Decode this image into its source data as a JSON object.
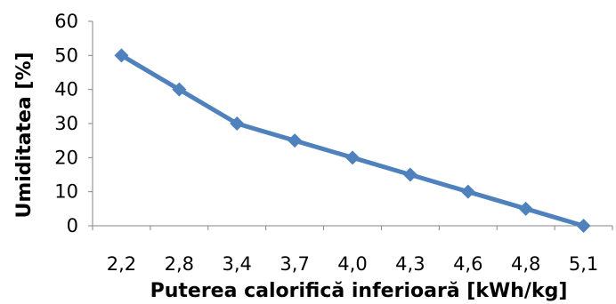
{
  "chart_data": {
    "type": "line",
    "title": "",
    "xlabel": "Puterea calorifică inferioară [kWh/kg]",
    "ylabel": "Umiditatea [%]",
    "categories": [
      "2,2",
      "2,8",
      "3,4",
      "3,7",
      "4,0",
      "4,3",
      "4,6",
      "4,8",
      "5,1"
    ],
    "yticks": [
      "0",
      "10",
      "20",
      "30",
      "40",
      "50",
      "60"
    ],
    "ylim": [
      0,
      60
    ],
    "grid": false,
    "legend": "none",
    "series": [
      {
        "values": [
          50,
          40,
          30,
          25,
          20,
          15,
          10,
          5,
          0
        ],
        "color": "#4f81bd",
        "marker": "diamond"
      }
    ]
  }
}
